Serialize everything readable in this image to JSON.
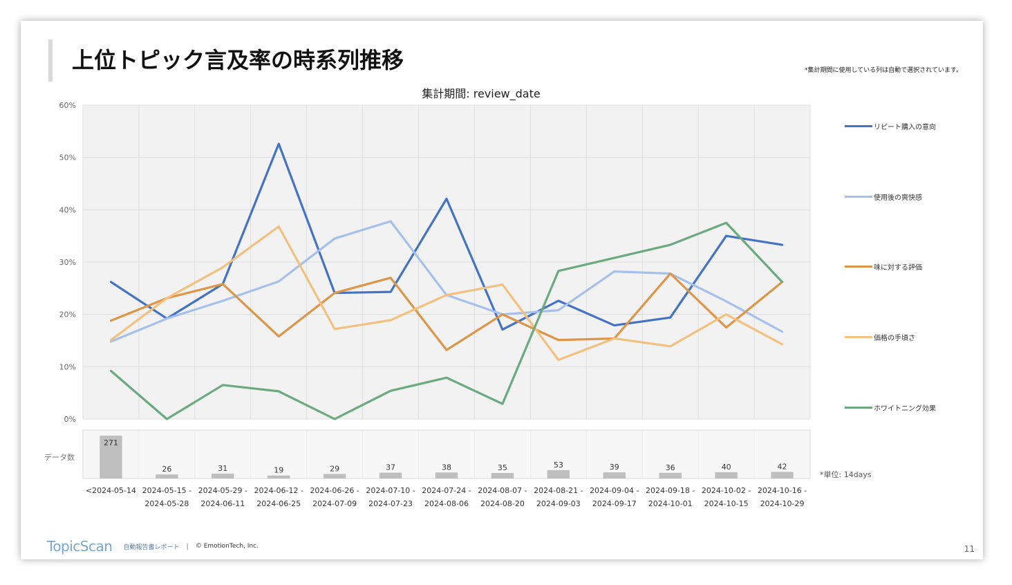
{
  "slide": {
    "title": "上位トピック言及率の時系列推移",
    "note": "*集計期間に使用している列は自動で選択されています。",
    "unit_note": "*単位: 14days",
    "data_count_label": "データ数",
    "page_number": "11"
  },
  "footer": {
    "logo": "TopicScan",
    "subtitle": "自動報告書レポート",
    "separator": "|",
    "copyright": "© EmotionTech, Inc."
  },
  "colors": {
    "plot_bg": "#f2f2f2",
    "grid": "#d9d9d9",
    "bar": "#bfbfbf"
  },
  "chart_data": {
    "type": "line",
    "title": "集計期間: review_date",
    "ylim": [
      0,
      60
    ],
    "yticks": [
      "0%",
      "10%",
      "20%",
      "30%",
      "40%",
      "50%",
      "60%"
    ],
    "grid": true,
    "legend_position": "right",
    "categories": [
      [
        "<2024-05-14",
        ""
      ],
      [
        "2024-05-15 -",
        "2024-05-28"
      ],
      [
        "2024-05-29 -",
        "2024-06-11"
      ],
      [
        "2024-06-12 -",
        "2024-06-25"
      ],
      [
        "2024-06-26 -",
        "2024-07-09"
      ],
      [
        "2024-07-10 -",
        "2024-07-23"
      ],
      [
        "2024-07-24 -",
        "2024-08-06"
      ],
      [
        "2024-08-07 -",
        "2024-08-20"
      ],
      [
        "2024-08-21 -",
        "2024-09-03"
      ],
      [
        "2024-09-04 -",
        "2024-09-17"
      ],
      [
        "2024-09-18 -",
        "2024-10-01"
      ],
      [
        "2024-10-02 -",
        "2024-10-15"
      ],
      [
        "2024-10-16 -",
        "2024-10-29"
      ]
    ],
    "series": [
      {
        "name": "リピート購入の意向",
        "color": "#4472c4",
        "values": [
          26.2,
          19.2,
          25.8,
          52.6,
          24.1,
          24.3,
          42.1,
          17.1,
          22.6,
          17.9,
          19.4,
          35.0,
          33.3
        ]
      },
      {
        "name": "使用後の爽快感",
        "color": "#a5c0ec",
        "values": [
          14.8,
          19.2,
          22.6,
          26.3,
          34.5,
          37.8,
          23.7,
          20.0,
          20.8,
          28.2,
          27.8,
          22.5,
          16.7
        ]
      },
      {
        "name": "味に対する評価",
        "color": "#dd9548",
        "values": [
          18.8,
          23.1,
          25.8,
          15.8,
          24.1,
          27.0,
          13.2,
          20.0,
          15.1,
          15.4,
          27.8,
          17.5,
          26.2
        ]
      },
      {
        "name": "価格の手頃さ",
        "color": "#f4c07e",
        "values": [
          15.1,
          23.1,
          29.0,
          36.8,
          17.2,
          18.9,
          23.7,
          25.7,
          11.3,
          15.4,
          13.9,
          20.0,
          14.3
        ]
      },
      {
        "name": "ホワイトニング効果",
        "color": "#6aaa7e",
        "values": [
          9.2,
          0.0,
          6.5,
          5.3,
          0.0,
          5.4,
          7.9,
          2.9,
          28.3,
          30.8,
          33.3,
          37.5,
          26.2
        ]
      }
    ],
    "data_counts": [
      271,
      26,
      31,
      19,
      29,
      37,
      38,
      35,
      53,
      39,
      36,
      40,
      42
    ]
  }
}
